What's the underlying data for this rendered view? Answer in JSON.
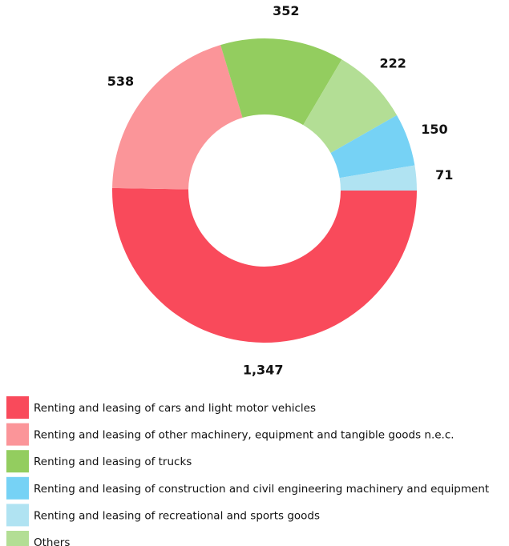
{
  "chart_data": {
    "type": "donut",
    "categories": [
      "Renting and leasing of cars and light motor vehicles",
      "Renting and leasing of other machinery, equipment and tangible goods n.e.c.",
      "Renting and leasing of trucks",
      "Others",
      "Renting and leasing of construction and civil engineering machinery and equipment",
      "Renting and leasing of recreational and sports goods"
    ],
    "values": [
      1347,
      538,
      352,
      222,
      150,
      71
    ],
    "value_labels": [
      "1,347",
      "538",
      "352",
      "222",
      "150",
      "71"
    ],
    "colors": [
      "#f94a5b",
      "#fb9599",
      "#93cd5f",
      "#b3de95",
      "#76d2f5",
      "#b0e3f2"
    ]
  }
}
